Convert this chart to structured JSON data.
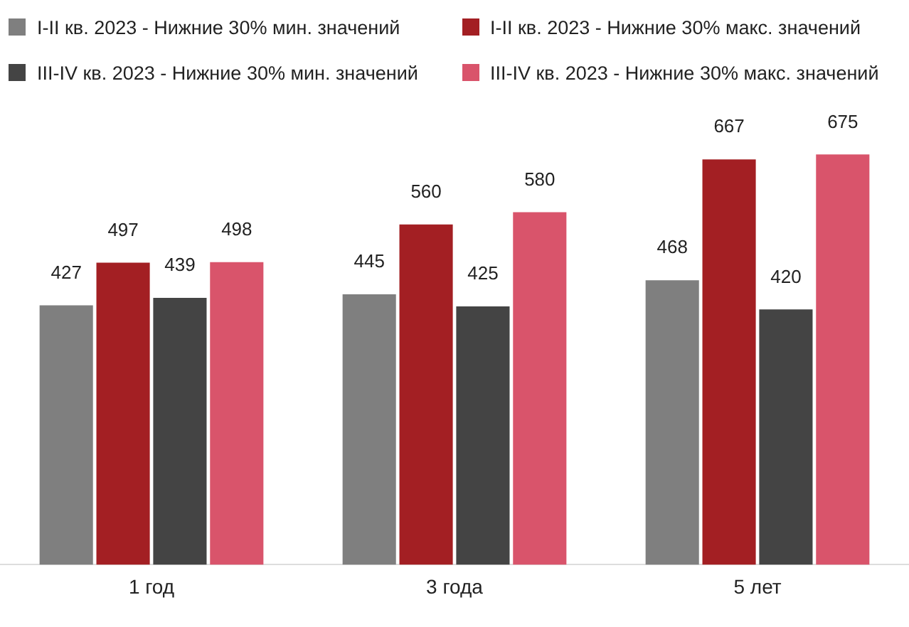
{
  "chart_data": {
    "type": "bar",
    "categories": [
      "1 год",
      "3 года",
      "5 лет"
    ],
    "series": [
      {
        "name": "I-II кв. 2023 - Нижние 30% мин. значений",
        "color": "#7f7f7f",
        "values": [
          427,
          445,
          468
        ]
      },
      {
        "name": "I-II кв. 2023 - Нижние 30% макс. значений",
        "color": "#a31f23",
        "values": [
          497,
          560,
          667
        ]
      },
      {
        "name": "III-IV кв. 2023 - Нижние 30% мин. значений",
        "color": "#444444",
        "values": [
          439,
          425,
          420
        ]
      },
      {
        "name": "III-IV кв. 2023 - Нижние 30% макс. значений",
        "color": "#d9546b",
        "values": [
          498,
          580,
          675
        ]
      }
    ],
    "data_labels": true,
    "legend": "top",
    "grid": false
  }
}
